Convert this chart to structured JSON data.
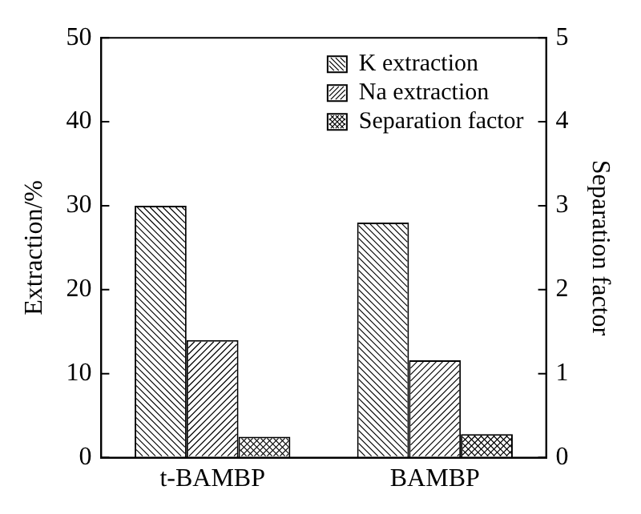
{
  "chart_data": {
    "type": "bar",
    "categories": [
      "t-BAMBP",
      "BAMBP"
    ],
    "series": [
      {
        "name": "K extraction",
        "color": "#000000",
        "values": [
          30,
          28
        ]
      },
      {
        "name": "Na extraction",
        "color": "#000000",
        "values": [
          14,
          11.6
        ]
      },
      {
        "name": "Separation factor",
        "color": "#000000",
        "values": [
          0.25,
          0.28
        ],
        "axis": "y2"
      }
    ],
    "ylabel": "Extraction/%",
    "y2label": "Separation factor",
    "ylim": [
      0,
      50
    ],
    "yticks": [
      0,
      10,
      20,
      30,
      40,
      50
    ],
    "y2lim": [
      0,
      5
    ],
    "y2ticks": [
      0,
      1,
      2,
      3,
      4,
      5
    ],
    "grid": false,
    "legend": "top right"
  }
}
